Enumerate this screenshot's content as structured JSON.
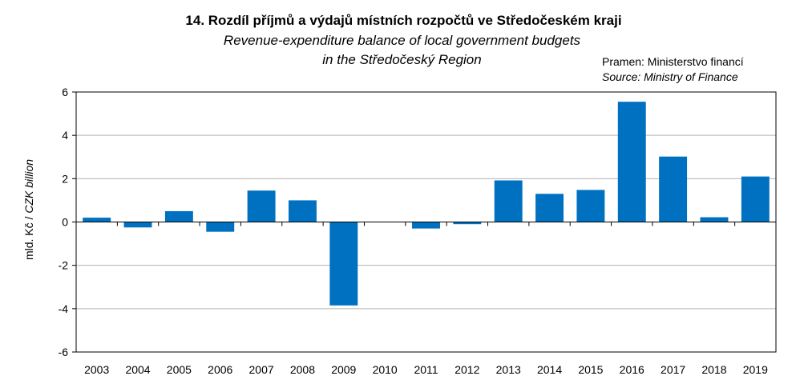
{
  "chart_data": {
    "type": "bar",
    "title": "14. Rozdíl příjmů a výdajů místních rozpočtů ve Středočeském kraji",
    "subtitle_lines": [
      "Revenue-expenditure balance of local government budgets",
      "in the Středočeský Region"
    ],
    "source_cz": "Pramen: Ministerstvo financí",
    "source_en": "Source: Ministry of Finance",
    "ylabel_cz": "mld. Kč / ",
    "ylabel_en": "CZK billion",
    "xlabel": "",
    "ylim": [
      -6,
      6
    ],
    "yticks": [
      6,
      4,
      2,
      0,
      -2,
      -4,
      -6
    ],
    "categories": [
      "2003",
      "2004",
      "2005",
      "2006",
      "2007",
      "2008",
      "2009",
      "2010",
      "2011",
      "2012",
      "2013",
      "2014",
      "2015",
      "2016",
      "2017",
      "2018",
      "2019"
    ],
    "values": [
      0.2,
      -0.25,
      0.5,
      -0.45,
      1.45,
      1.0,
      -3.85,
      0.0,
      -0.3,
      -0.1,
      1.92,
      1.3,
      1.48,
      5.55,
      3.02,
      0.22,
      2.1
    ],
    "bar_color": "#0070C0",
    "gridlines": true,
    "legend": "none"
  }
}
